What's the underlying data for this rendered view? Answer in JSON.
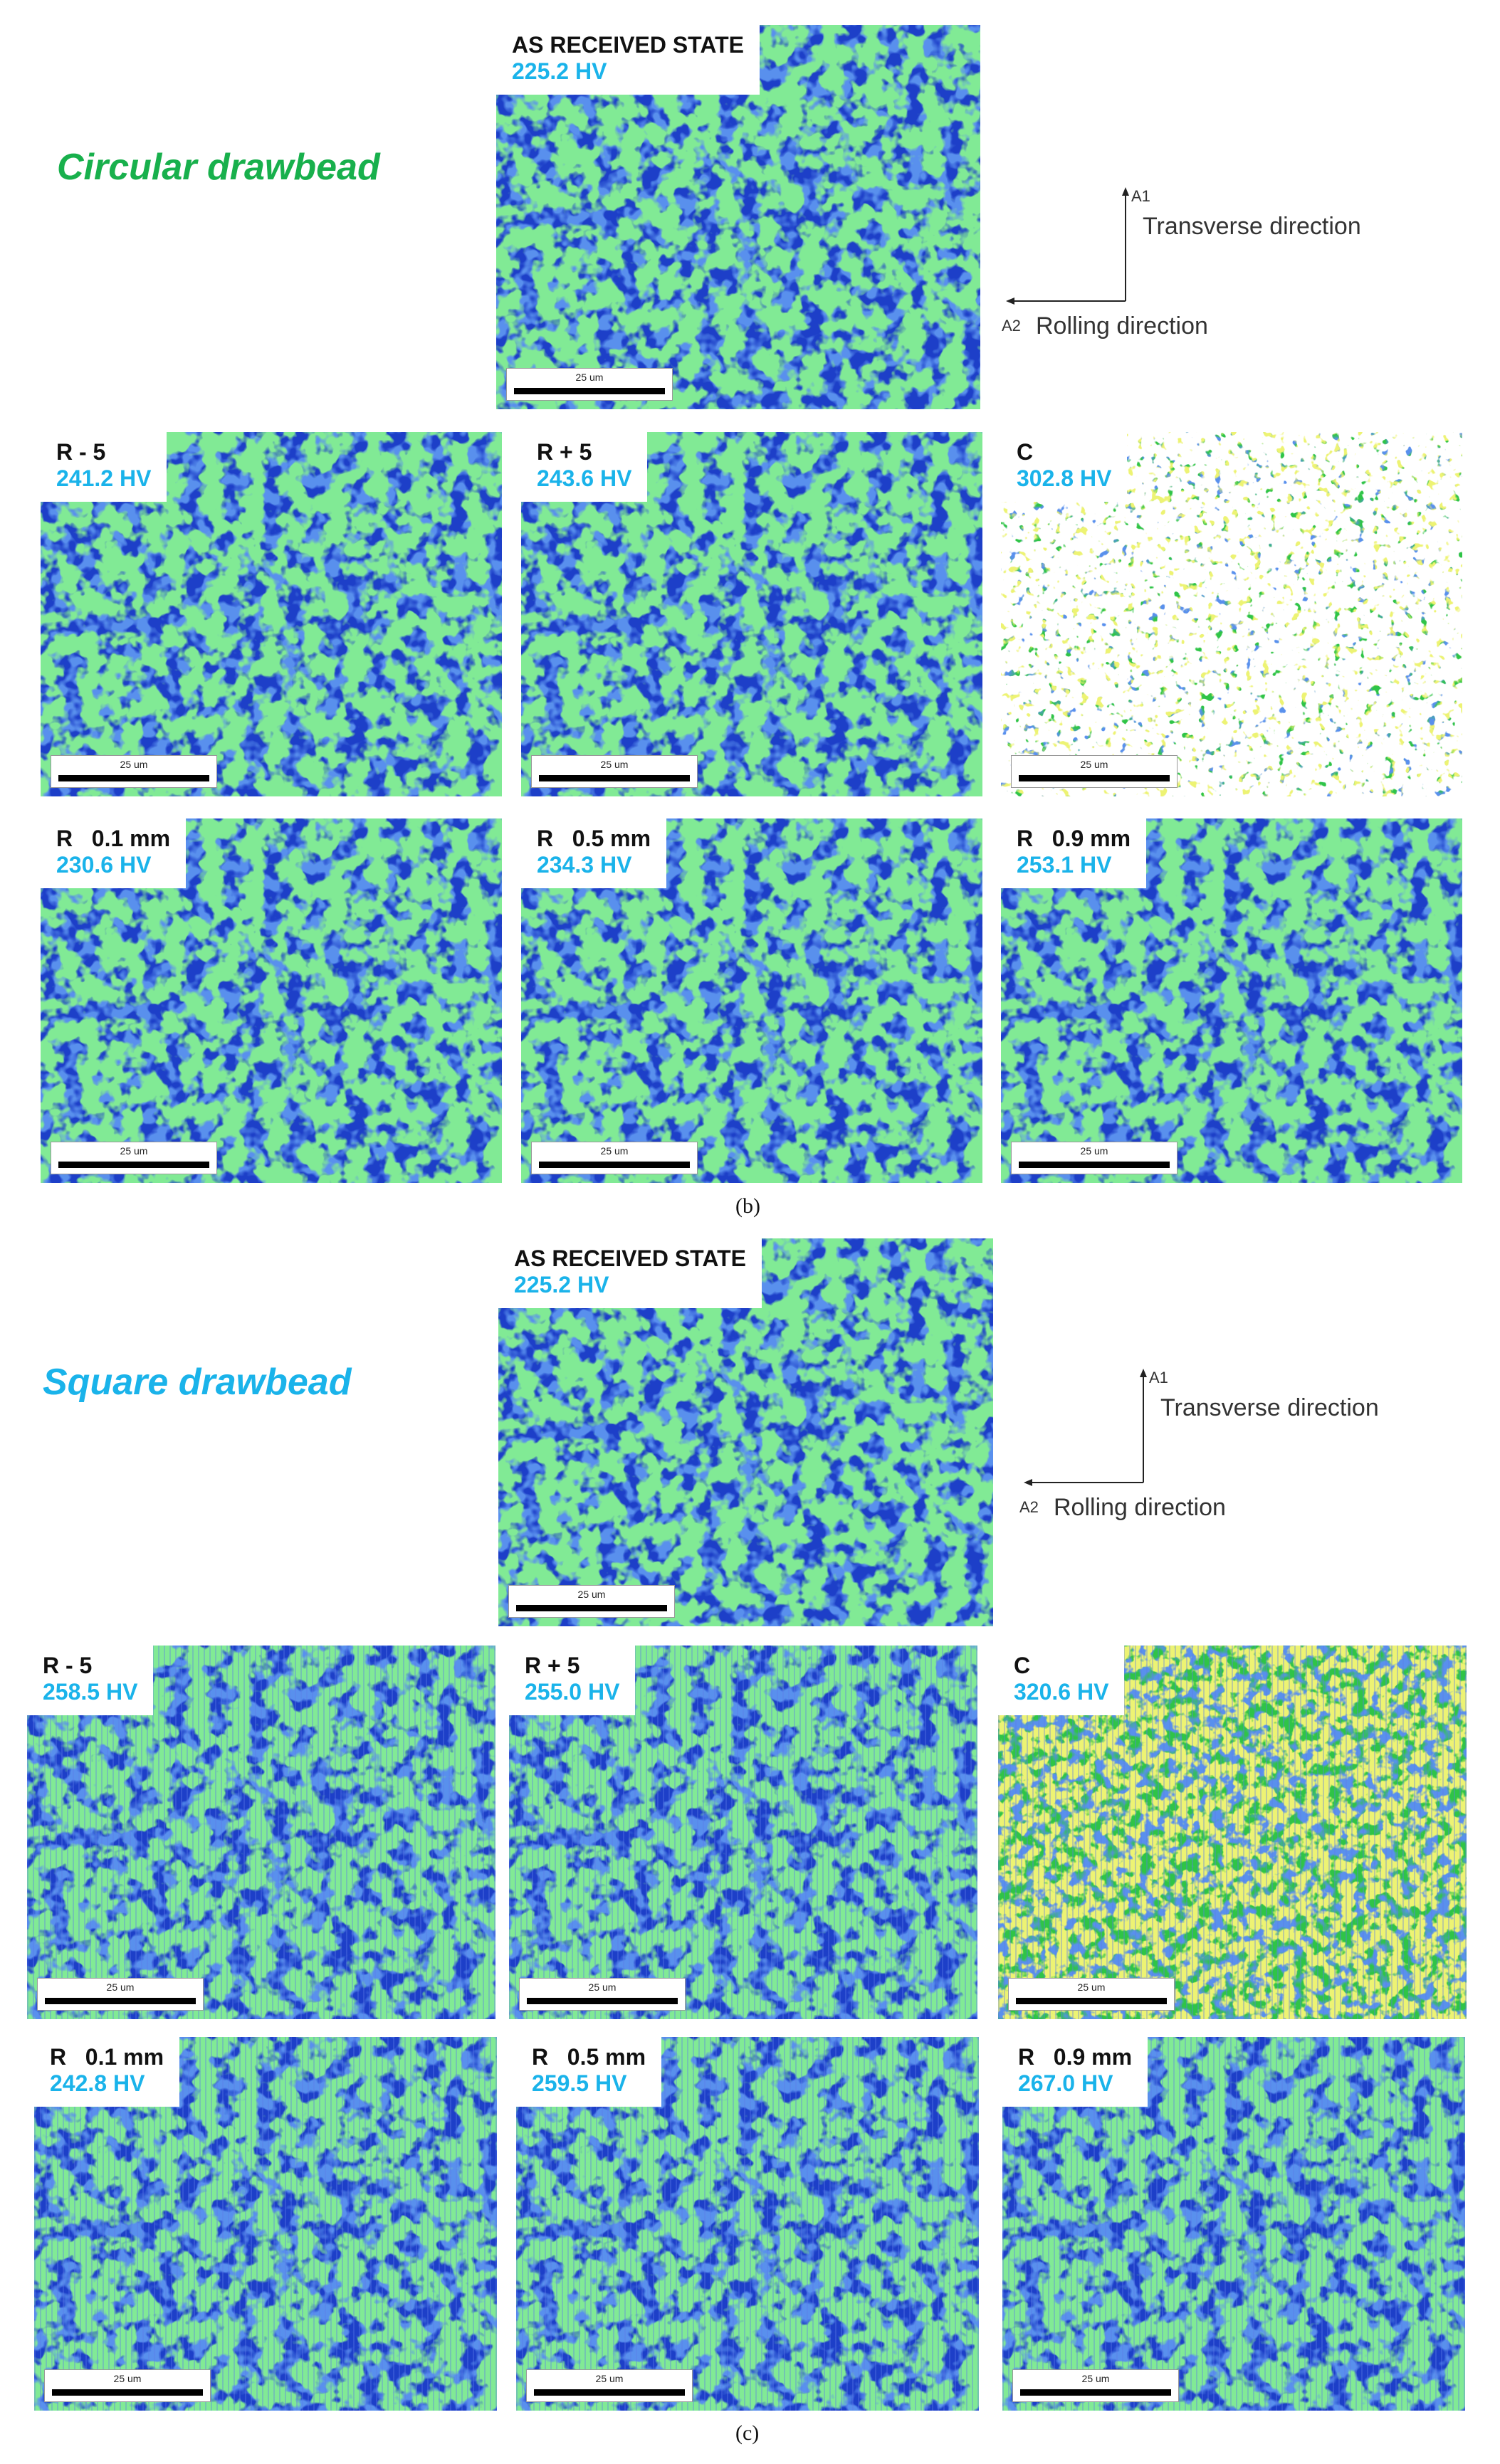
{
  "sections": [
    {
      "title": "Circular drawbead",
      "title_color": "#18b04c",
      "axes": {
        "a1": "A1",
        "a2": "A2",
        "transverse": "Transverse direction",
        "rolling": "Rolling direction"
      },
      "caption": "(b)",
      "panels": [
        {
          "name": "AS RECEIVED STATE",
          "hv": "225.2 HV",
          "scale": "25 um"
        },
        {
          "name": "R - 5",
          "hv": "241.2 HV",
          "scale": "25 um"
        },
        {
          "name": "R + 5",
          "hv": "243.6 HV",
          "scale": "25 um"
        },
        {
          "name": "C",
          "hv": "302.8 HV",
          "scale": "25 um"
        },
        {
          "name": "R   0.1 mm",
          "hv": "230.6 HV",
          "scale": "25 um"
        },
        {
          "name": "R   0.5 mm",
          "hv": "234.3 HV",
          "scale": "25 um"
        },
        {
          "name": "R   0.9 mm",
          "hv": "253.1 HV",
          "scale": "25 um"
        }
      ]
    },
    {
      "title": "Square drawbead",
      "title_color": "#1ab3ea",
      "axes": {
        "a1": "A1",
        "a2": "A2",
        "transverse": "Transverse direction",
        "rolling": "Rolling direction"
      },
      "caption": "(c)",
      "panels": [
        {
          "name": "AS RECEIVED STATE",
          "hv": "225.2 HV",
          "scale": "25 um"
        },
        {
          "name": "R - 5",
          "hv": "258.5 HV",
          "scale": "25 um"
        },
        {
          "name": "R + 5",
          "hv": "255.0 HV",
          "scale": "25 um"
        },
        {
          "name": "C",
          "hv": "320.6 HV",
          "scale": "25 um"
        },
        {
          "name": "R   0.1 mm",
          "hv": "242.8 HV",
          "scale": "25 um"
        },
        {
          "name": "R   0.5 mm",
          "hv": "259.5 HV",
          "scale": "25 um"
        },
        {
          "name": "R   0.9 mm",
          "hv": "267.0 HV",
          "scale": "25 um"
        }
      ]
    }
  ],
  "colors": {
    "map_blue": "#1d3fc8",
    "grain_green": "#38d24a",
    "high_yellow": "#d8e62c"
  }
}
